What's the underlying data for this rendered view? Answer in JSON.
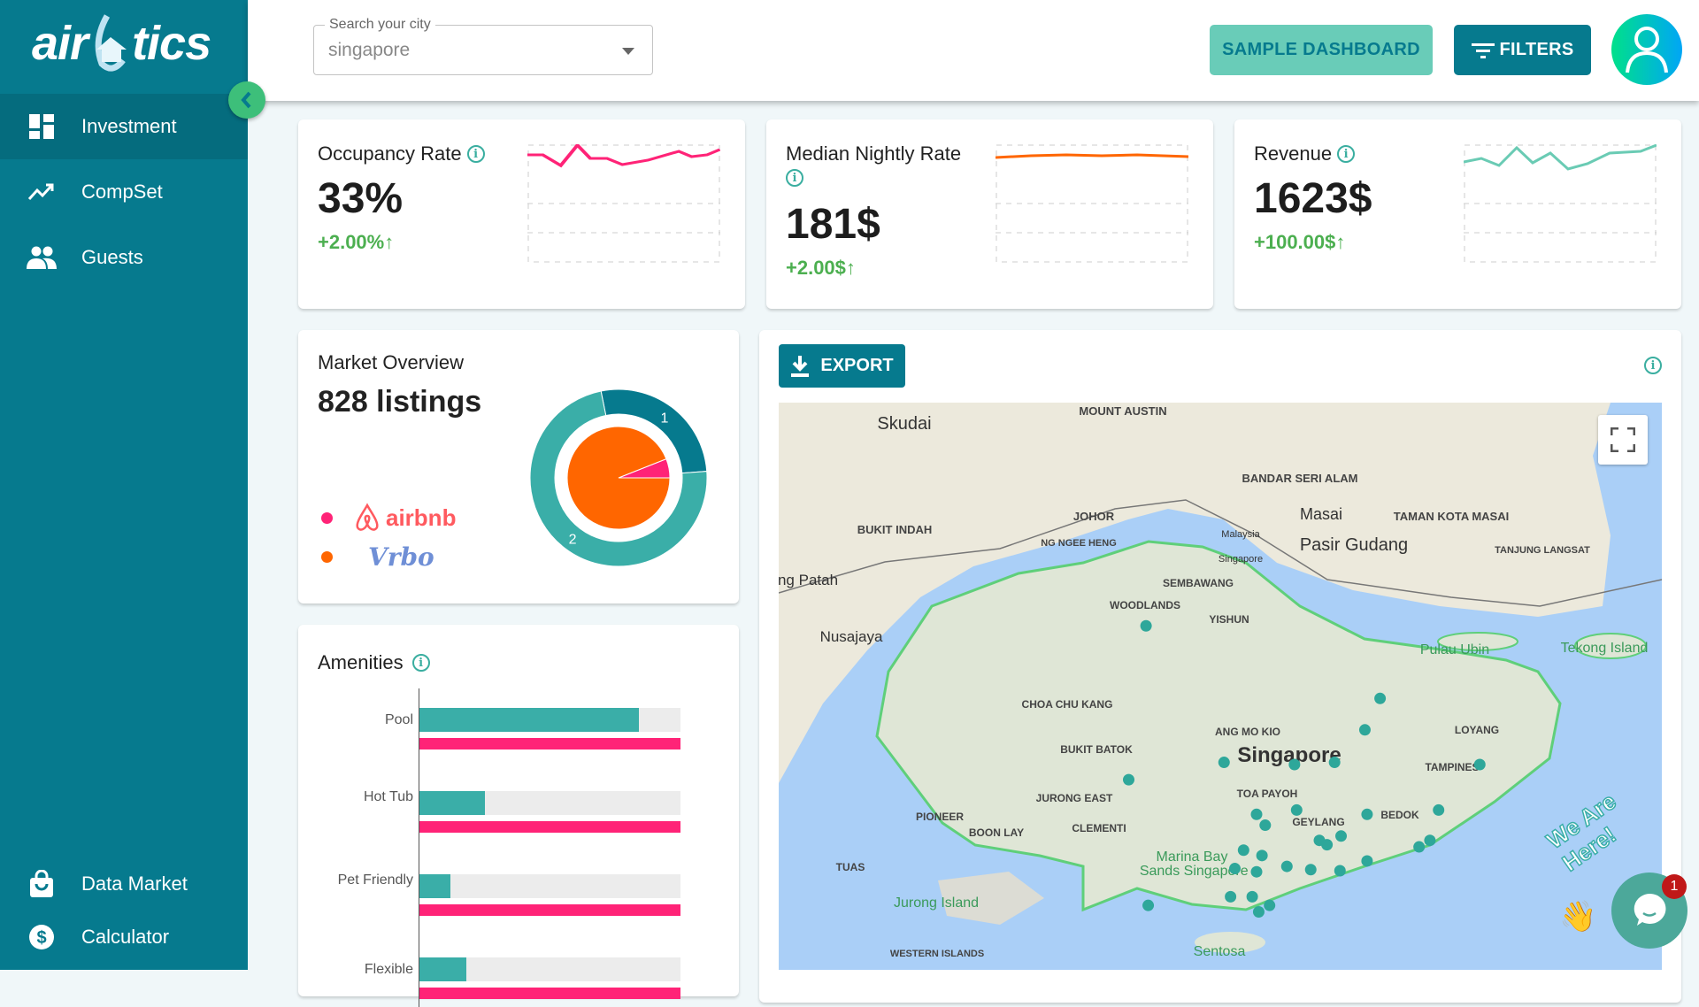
{
  "logo": {
    "text": "airbtics",
    "left": "air",
    "right": "tics"
  },
  "sidebar": {
    "items": [
      {
        "label": "Investment",
        "icon": "dashboard-icon",
        "active": true
      },
      {
        "label": "CompSet",
        "icon": "trending-up-icon"
      },
      {
        "label": "Guests",
        "icon": "people-icon"
      },
      {
        "label": "Data Market",
        "icon": "shopping-bag-icon"
      },
      {
        "label": "Calculator",
        "icon": "dollar-icon"
      }
    ]
  },
  "header": {
    "search_label": "Search your city",
    "search_value": "singapore",
    "sample_label": "SAMPLE DASHBOARD",
    "filters_label": "FILTERS"
  },
  "kpis": [
    {
      "title": "Occupancy Rate",
      "value": "33%",
      "delta": "+2.00%↑",
      "color": "#ff2377"
    },
    {
      "title": "Median Nightly Rate",
      "value": "181$",
      "delta": "+2.00$↑",
      "color": "#ff6600"
    },
    {
      "title": "Revenue",
      "value": "1623$",
      "delta": "+100.00$↑",
      "color": "#6acbb4"
    }
  ],
  "market": {
    "title": "Market Overview",
    "listings": "828 listings",
    "legend": [
      {
        "name": "airbnb",
        "color": "#ff2377"
      },
      {
        "name": "Vrbo",
        "color": "#ff6600"
      }
    ]
  },
  "amenities": {
    "title": "Amenities"
  },
  "export_label": "EXPORT",
  "map": {
    "labels": [
      "Skudai",
      "MOUNT AUSTIN",
      "BANDAR SERI ALAM",
      "Masai",
      "TAMAN KOTA MASAI",
      "Pasir Gudang",
      "TANJUNG LANGSAT",
      "BUKIT INDAH",
      "JOHOR",
      "NG NGEE HENG",
      "ng Patah",
      "Nusajaya",
      "SEMBAWANG",
      "WOODLANDS",
      "YISHUN",
      "Pulau Ubin",
      "Tekong Island",
      "CHOA CHU KANG",
      "ANG MO KIO",
      "Singapore",
      "LOYANG",
      "TAMPINES",
      "BUKIT BATOK",
      "TOA PAYOH",
      "BEDOK",
      "GEYLANG",
      "JURONG EAST",
      "PIONEER",
      "BOON LAY",
      "CLEMENTI",
      "Marina Bay Sands Singapore",
      "TUAS",
      "Jurong Island",
      "Sentosa",
      "WESTERN ISLANDS",
      "Malaysia",
      "Singapore"
    ]
  },
  "chat": {
    "badge": "1",
    "tagline": "We Are Here!"
  },
  "chart_data": [
    {
      "type": "pie",
      "name": "market-donut",
      "outer": {
        "labels": [
          "1",
          "2"
        ],
        "values": [
          27,
          73
        ],
        "colors": [
          "#067a8e",
          "#3aaea8"
        ]
      },
      "inner": {
        "labels": [
          "airbnb",
          "Vrbo"
        ],
        "values": [
          6,
          94
        ],
        "colors": [
          "#ff2377",
          "#ff6600"
        ]
      }
    },
    {
      "type": "bar",
      "name": "amenities",
      "categories": [
        "Pool",
        "Hot Tub",
        "Pet Friendly",
        "Flexible"
      ],
      "series": [
        {
          "values": [
            84,
            25,
            12,
            18
          ],
          "color": "#3aaea8"
        },
        {
          "values": [
            100,
            100,
            100,
            100
          ],
          "color": "#ff2377"
        }
      ],
      "xlim": [
        0,
        100
      ]
    }
  ]
}
